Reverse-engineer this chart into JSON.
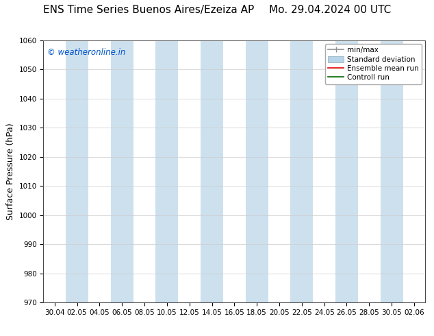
{
  "title_left": "ENS Time Series Buenos Aires/Ezeiza AP",
  "title_right": "Mo. 29.04.2024 00 UTC",
  "ylabel": "Surface Pressure (hPa)",
  "ylim": [
    970,
    1060
  ],
  "yticks": [
    970,
    980,
    990,
    1000,
    1010,
    1020,
    1030,
    1040,
    1050,
    1060
  ],
  "xtick_labels": [
    "30.04",
    "02.05",
    "04.05",
    "06.05",
    "08.05",
    "10.05",
    "12.05",
    "14.05",
    "16.05",
    "18.05",
    "20.05",
    "22.05",
    "24.05",
    "26.05",
    "28.05",
    "30.05",
    "02.06"
  ],
  "watermark": "© weatheronline.in",
  "watermark_color": "#0055cc",
  "background_color": "#ffffff",
  "plot_bg_color": "#ffffff",
  "band_color": "#cde0ee",
  "band_indices": [
    1,
    3,
    5,
    7,
    9,
    11,
    13,
    15
  ],
  "legend_items": [
    {
      "label": "min/max",
      "color": "#909090",
      "lw": 1.2
    },
    {
      "label": "Standard deviation",
      "color": "#b8d4e8",
      "lw": 6
    },
    {
      "label": "Ensemble mean run",
      "color": "#dd0000",
      "lw": 1.2
    },
    {
      "label": "Controll run",
      "color": "#006600",
      "lw": 1.2
    }
  ],
  "title_fontsize": 11,
  "tick_fontsize": 7.5,
  "ylabel_fontsize": 9,
  "legend_fontsize": 7.5
}
